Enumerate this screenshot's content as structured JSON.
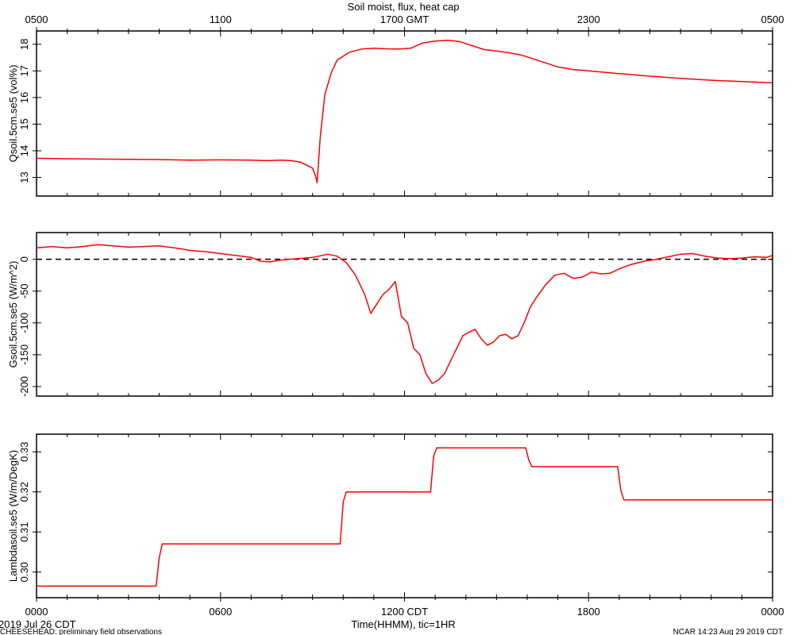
{
  "title": "Soil moist, flux, heat cap",
  "top_axis": {
    "tick_labels": [
      "0500",
      "1100",
      "1700 GMT",
      "2300",
      "0500"
    ],
    "tick_hours": [
      0,
      6,
      12,
      18,
      24
    ]
  },
  "bottom_axis": {
    "tick_labels": [
      "0000",
      "0600",
      "1200 CDT",
      "1800",
      "0000"
    ],
    "tick_hours": [
      0,
      6,
      12,
      18,
      24
    ],
    "xlabel": "Time(HHMM), tic=1HR"
  },
  "footer": {
    "date": "2019 Jul 26 CDT",
    "project": "CHEESEHEAD: preliminary field observations",
    "credit": "NCAR 14:23 Aug 29 2019 CDT"
  },
  "colors": {
    "series": "#ff0000",
    "axis": "#000000",
    "zero_line": "#000000"
  },
  "chart_data": [
    {
      "type": "line",
      "ylabel": "Qsoil.5cm.se5 (vol%)",
      "ylim": [
        12.3,
        18.5
      ],
      "yticks": [
        13,
        14,
        15,
        16,
        17,
        18
      ],
      "ytick_labels": [
        "13",
        "14",
        "15",
        "16",
        "17",
        "18"
      ],
      "xlim": [
        0,
        24
      ],
      "x": [
        0,
        1,
        2,
        3,
        4,
        5,
        6,
        7,
        7.5,
        8,
        8.3,
        8.6,
        9.0,
        9.1,
        9.15,
        9.25,
        9.4,
        9.6,
        9.8,
        10.2,
        10.6,
        11.0,
        11.4,
        11.8,
        12.2,
        12.6,
        13.0,
        13.4,
        13.8,
        14.2,
        14.6,
        15.0,
        15.4,
        15.8,
        16.2,
        16.6,
        17.0,
        17.5,
        18.0,
        18.5,
        19.0,
        19.5,
        20.0,
        21.0,
        22.0,
        23.0,
        24.0
      ],
      "y": [
        13.72,
        13.7,
        13.69,
        13.68,
        13.67,
        13.65,
        13.66,
        13.65,
        13.63,
        13.65,
        13.63,
        13.58,
        13.35,
        13.05,
        12.8,
        14.5,
        16.1,
        16.9,
        17.4,
        17.7,
        17.82,
        17.85,
        17.83,
        17.82,
        17.85,
        18.05,
        18.12,
        18.15,
        18.1,
        17.95,
        17.8,
        17.75,
        17.68,
        17.6,
        17.45,
        17.3,
        17.15,
        17.05,
        17.0,
        16.95,
        16.9,
        16.85,
        16.8,
        16.72,
        16.65,
        16.6,
        16.55
      ]
    },
    {
      "type": "line",
      "ylabel": "Gsoil.5cm.se5 (W/m^2)",
      "ylim": [
        -215,
        42
      ],
      "yticks": [
        -200,
        -150,
        -100,
        -50,
        0
      ],
      "ytick_labels": [
        "-200",
        "-150",
        "-100",
        "-50",
        "0"
      ],
      "zero_line": true,
      "xlim": [
        0,
        24
      ],
      "x": [
        0,
        0.5,
        1,
        1.5,
        2,
        2.5,
        3,
        3.5,
        4,
        4.5,
        5,
        5.5,
        6,
        6.5,
        7,
        7.3,
        7.6,
        8,
        8.5,
        9,
        9.5,
        9.8,
        10.1,
        10.4,
        10.7,
        10.9,
        11.1,
        11.3,
        11.5,
        11.7,
        11.9,
        12.1,
        12.3,
        12.5,
        12.7,
        12.9,
        13.1,
        13.3,
        13.5,
        13.7,
        13.9,
        14.1,
        14.3,
        14.5,
        14.7,
        14.9,
        15.1,
        15.3,
        15.5,
        15.7,
        15.9,
        16.1,
        16.3,
        16.6,
        16.9,
        17.2,
        17.5,
        17.8,
        18.1,
        18.4,
        18.7,
        19,
        19.4,
        19.8,
        20.2,
        20.6,
        21.0,
        21.4,
        21.8,
        22.2,
        22.6,
        23.0,
        23.4,
        23.8,
        24
      ],
      "y": [
        18,
        20,
        18,
        20,
        23,
        21,
        19,
        20,
        21,
        18,
        14,
        12,
        9,
        6,
        3,
        -3,
        -4,
        -1,
        1,
        3,
        8,
        5,
        -5,
        -25,
        -55,
        -85,
        -70,
        -55,
        -47,
        -35,
        -90,
        -100,
        -140,
        -150,
        -180,
        -195,
        -190,
        -180,
        -160,
        -140,
        -120,
        -115,
        -110,
        -125,
        -135,
        -130,
        -120,
        -118,
        -125,
        -120,
        -100,
        -75,
        -60,
        -40,
        -25,
        -22,
        -30,
        -28,
        -20,
        -23,
        -22,
        -15,
        -8,
        -3,
        0,
        4,
        8,
        9,
        5,
        2,
        1,
        2,
        4,
        3,
        6
      ]
    },
    {
      "type": "line",
      "ylabel": "Lambdasoil.se5 (W/m/DegK)",
      "ylim": [
        0.2936,
        0.3344
      ],
      "yticks": [
        0.3,
        0.31,
        0.32,
        0.33
      ],
      "ytick_labels": [
        "0.30",
        "0.31",
        "0.32",
        "0.33"
      ],
      "xlim": [
        0,
        24
      ],
      "x": [
        0,
        3.9,
        4.0,
        4.1,
        9.9,
        10.0,
        10.1,
        12.85,
        12.95,
        13.05,
        15.95,
        16.05,
        16.15,
        18.95,
        19.05,
        19.15,
        24
      ],
      "y": [
        0.2965,
        0.2965,
        0.3035,
        0.307,
        0.307,
        0.3175,
        0.32,
        0.32,
        0.329,
        0.331,
        0.331,
        0.328,
        0.3263,
        0.3263,
        0.3205,
        0.318,
        0.318
      ]
    }
  ]
}
